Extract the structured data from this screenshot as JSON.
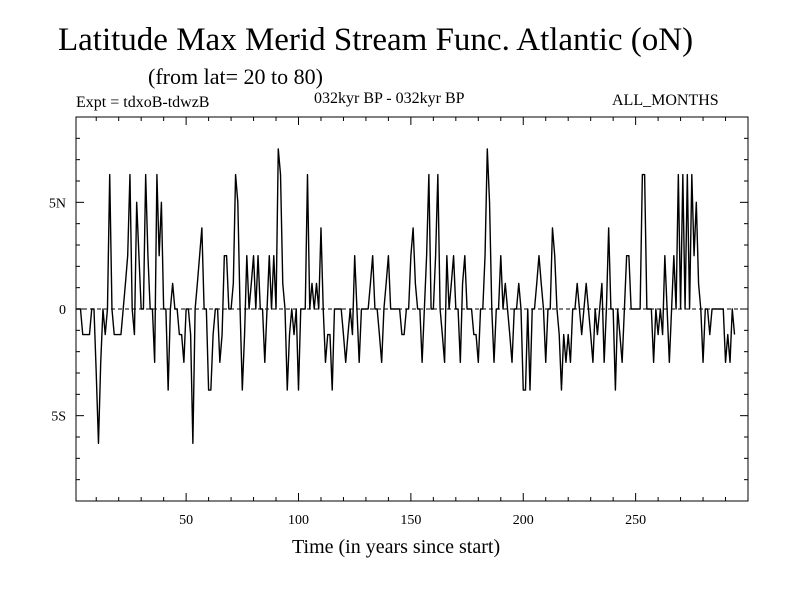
{
  "header": {
    "title": "Latitude Max Merid Stream Func. Atlantic (oN)",
    "subtitle": "(from lat= 20 to 80)",
    "expt": "Expt = tdxoB-tdwzB",
    "period": "032kyr BP - 032kyr BP",
    "months": "ALL_MONTHS"
  },
  "chart_data": {
    "type": "line",
    "title": "Latitude Max Merid Stream Func. Atlantic (oN)",
    "subtitle": "(from lat= 20 to 80)",
    "xlabel": "Time (in years since start)",
    "ylabel": "",
    "xlim": [
      1,
      300
    ],
    "ylim": [
      -9,
      9
    ],
    "x_ticks": [
      50,
      100,
      150,
      200,
      250
    ],
    "x_tick_labels": [
      "50",
      "100",
      "150",
      "200",
      "250"
    ],
    "y_ticks": [
      5,
      0,
      -5
    ],
    "y_tick_labels": [
      "5N",
      "0",
      "5S"
    ],
    "zero_line": "dashed",
    "grid": false,
    "series": [
      {
        "x_start": 1,
        "x_step": 1,
        "values": [
          0,
          0,
          0,
          -1.2,
          -1.2,
          -1.2,
          -1.2,
          0,
          0,
          -3,
          -6.3,
          -2.5,
          0,
          -1.2,
          0,
          6.3,
          0,
          -1.2,
          -1.2,
          -1.2,
          -1.2,
          0,
          1.2,
          2.5,
          6.3,
          0,
          -1.2,
          5,
          2.5,
          0,
          0,
          6.3,
          2.5,
          0,
          0,
          -2.5,
          6.3,
          2.5,
          5,
          0,
          0,
          -3.8,
          0,
          1.2,
          0,
          0,
          -1.2,
          -1.2,
          -2.5,
          0,
          0,
          -1.2,
          -6.3,
          0,
          1.2,
          2.5,
          3.8,
          0,
          0,
          -3.8,
          -3.8,
          -1.2,
          0,
          0,
          -2.5,
          -1.2,
          2.5,
          2.5,
          0,
          0,
          1.2,
          6.3,
          5,
          0,
          -3.8,
          -1.2,
          2.5,
          0,
          1.2,
          2.5,
          0,
          2.5,
          0,
          0,
          -2.5,
          0,
          2.5,
          0,
          2.5,
          0,
          7.5,
          6.3,
          1.2,
          0,
          -3.8,
          -1.2,
          0,
          -1.2,
          0,
          -3.8,
          0,
          0,
          0,
          6.3,
          0,
          1.2,
          0,
          1.2,
          0,
          3.8,
          0,
          -2.5,
          -1.2,
          -1.2,
          -3.8,
          0,
          0,
          0,
          0,
          -1.2,
          -2.5,
          -1.2,
          0,
          -1.2,
          2.5,
          0,
          -2.5,
          0,
          0,
          0,
          0,
          1.2,
          2.5,
          0,
          0,
          -1.2,
          -2.5,
          0,
          1.2,
          2.5,
          0,
          0,
          0,
          0,
          0,
          -1.2,
          -1.2,
          0,
          0,
          2.5,
          3.8,
          1.2,
          0,
          0,
          -2.5,
          0,
          2.5,
          6.3,
          0,
          0,
          2.5,
          6.3,
          0,
          -1.2,
          -2.5,
          2.5,
          0,
          1.2,
          2.5,
          0,
          0,
          -2.5,
          1.2,
          2.5,
          0,
          0,
          0,
          -1.2,
          -1.2,
          -2.5,
          0,
          0,
          2.5,
          7.5,
          5,
          0,
          -2.5,
          0,
          0,
          2.5,
          0,
          1.2,
          0,
          -1.2,
          -2.5,
          0,
          0,
          1.2,
          0,
          -3.8,
          -3.8,
          0,
          -3.8,
          0,
          0,
          1.2,
          2.5,
          1.2,
          0,
          -2.5,
          0,
          0,
          3.8,
          2.5,
          0,
          -1.2,
          -3.8,
          -1.2,
          -2.5,
          -1.2,
          -2.5,
          0,
          0,
          1.2,
          0,
          -1.2,
          0,
          1.2,
          0,
          -1.2,
          -2.5,
          0,
          -1.2,
          0,
          1.2,
          -2.5,
          0,
          3.8,
          0,
          0,
          -3.8,
          0,
          -1.2,
          -2.5,
          0,
          2.5,
          2.5,
          0,
          0,
          0,
          0,
          0,
          6.3,
          6.3,
          0,
          0,
          0,
          -2.5,
          0,
          -1.2,
          0,
          -1.2,
          2.5,
          0,
          -2.5,
          0,
          2.5,
          0,
          6.3,
          0,
          6.3,
          0,
          6.3,
          0,
          6.3,
          2.5,
          5,
          1.2,
          0,
          -2.5,
          0,
          0,
          -1.2,
          0,
          0,
          0,
          0,
          0,
          0,
          -2.5,
          -1.2,
          -2.5,
          0,
          -1.2
        ]
      }
    ]
  }
}
